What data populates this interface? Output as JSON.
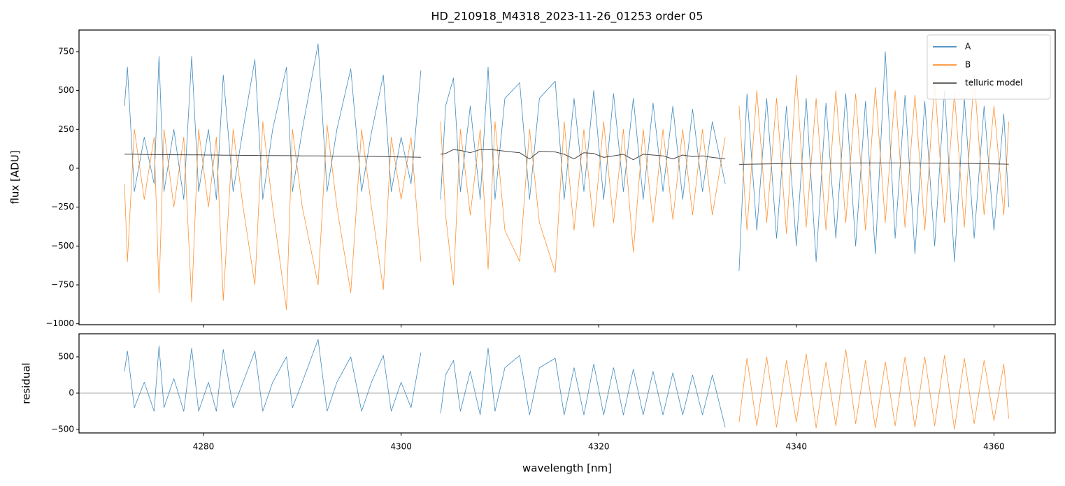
{
  "chart_data": [
    {
      "type": "line",
      "title": "HD_210918_M4318_2023-11-26_01253  order 05",
      "y_label": "flux [ADU]",
      "x": [
        4272,
        4272.3,
        4273,
        4274,
        4275,
        4275.5,
        4276,
        4277,
        4278,
        4278.8,
        4279.5,
        4280.5,
        4281.3,
        4282,
        4283,
        4284,
        4285.2,
        4286,
        4287,
        4288.4,
        4289,
        4290,
        4291.6,
        4292.5,
        4293.5,
        4294.9,
        4296,
        4297,
        4298.2,
        4299,
        4300,
        4301,
        4302,
        null,
        4304,
        4304.5,
        4305.3,
        4306,
        4307,
        4308,
        4308.8,
        4309.5,
        4310.5,
        4312,
        4313,
        4314,
        4315.6,
        4316.5,
        4317.5,
        4318.5,
        4319.5,
        4320.5,
        4321.5,
        4322.5,
        4323.5,
        4324.5,
        4325.5,
        4326.5,
        4327.5,
        4328.5,
        4329.5,
        4330.5,
        4331.5,
        4332.8,
        null,
        4334.2,
        4335,
        4336,
        4337,
        4338,
        4339,
        4340,
        4341,
        4342,
        4343,
        4344,
        4345,
        4346,
        4347,
        4348,
        4349,
        4350,
        4351,
        4352,
        4353,
        4354,
        4355,
        4356,
        4357,
        4358,
        4359,
        4360,
        4361,
        4361.5
      ],
      "series": [
        {
          "name": "A",
          "color": "#1f77b4",
          "values": [
            400,
            650,
            -150,
            200,
            -100,
            720,
            -150,
            250,
            -200,
            720,
            -150,
            250,
            -200,
            600,
            -150,
            250,
            700,
            -200,
            250,
            650,
            -150,
            250,
            800,
            -150,
            250,
            640,
            -150,
            230,
            600,
            -150,
            200,
            -100,
            630,
            null,
            -200,
            400,
            580,
            -150,
            400,
            -200,
            650,
            -200,
            450,
            550,
            -200,
            450,
            560,
            -200,
            450,
            -150,
            500,
            -200,
            480,
            -150,
            450,
            -200,
            420,
            -150,
            400,
            -200,
            380,
            -150,
            300,
            -100,
            null,
            -660,
            480,
            -400,
            450,
            -450,
            400,
            -500,
            450,
            -600,
            420,
            -450,
            480,
            -500,
            430,
            -550,
            750,
            -450,
            470,
            -550,
            430,
            -500,
            500,
            -600,
            450,
            -450,
            400,
            -400,
            350,
            -250
          ]
        },
        {
          "name": "B",
          "color": "#ff7f0e",
          "values": [
            -100,
            -600,
            250,
            -200,
            200,
            -800,
            250,
            -250,
            200,
            -860,
            250,
            -250,
            200,
            -850,
            250,
            -250,
            -750,
            300,
            -250,
            -910,
            250,
            -250,
            -750,
            280,
            -250,
            -800,
            250,
            -250,
            -780,
            200,
            -200,
            200,
            -600,
            null,
            300,
            -300,
            -750,
            250,
            -300,
            250,
            -650,
            300,
            -400,
            -600,
            250,
            -350,
            -670,
            300,
            -400,
            250,
            -380,
            300,
            -350,
            250,
            -540,
            250,
            -350,
            250,
            -330,
            250,
            -300,
            250,
            -300,
            200,
            null,
            400,
            -400,
            500,
            -350,
            450,
            -420,
            600,
            -380,
            450,
            -400,
            500,
            -350,
            480,
            -400,
            520,
            -350,
            500,
            -380,
            470,
            -400,
            560,
            -350,
            480,
            -380,
            600,
            -300,
            400,
            -300,
            300
          ]
        },
        {
          "name": "telluric model",
          "color": "#333333",
          "values": [
            90,
            90,
            90,
            89,
            89,
            88,
            88,
            87,
            87,
            86,
            86,
            85,
            85,
            84,
            84,
            83,
            83,
            82,
            82,
            81,
            81,
            80,
            80,
            79,
            78,
            78,
            77,
            76,
            75,
            74,
            73,
            72,
            71,
            null,
            90,
            95,
            120,
            115,
            100,
            120,
            120,
            118,
            110,
            100,
            60,
            110,
            105,
            90,
            60,
            100,
            95,
            70,
            80,
            90,
            55,
            90,
            85,
            80,
            60,
            85,
            75,
            80,
            70,
            60,
            null,
            25,
            26,
            27,
            28,
            29,
            30,
            31,
            31,
            32,
            32,
            33,
            33,
            34,
            34,
            34,
            34,
            34,
            34,
            34,
            33,
            33,
            32,
            32,
            31,
            30,
            29,
            28,
            27,
            26
          ]
        }
      ],
      "xlim": [
        4267.4,
        4366.2
      ],
      "xticks": [
        4280,
        4300,
        4320,
        4340,
        4360
      ],
      "ylim": [
        -1006,
        889
      ],
      "yticks": [
        {
          "value": -1000,
          "label": "−1000"
        },
        {
          "value": -750,
          "label": "−750"
        },
        {
          "value": -500,
          "label": "−500"
        },
        {
          "value": -250,
          "label": "−250"
        },
        0,
        250,
        500,
        750
      ],
      "legend": "upper right"
    },
    {
      "type": "line",
      "x_label": "wavelength [nm]",
      "y_label": "residual",
      "x": [
        4272,
        4272.3,
        4273,
        4274,
        4275,
        4275.5,
        4276,
        4277,
        4278,
        4278.8,
        4279.5,
        4280.5,
        4281.3,
        4282,
        4283,
        4284,
        4285.2,
        4286,
        4287,
        4288.4,
        4289,
        4290,
        4291.6,
        4292.5,
        4293.5,
        4294.9,
        4296,
        4297,
        4298.2,
        4299,
        4300,
        4301,
        4302,
        null,
        4304,
        4304.5,
        4305.3,
        4306,
        4307,
        4308,
        4308.8,
        4309.5,
        4310.5,
        4312,
        4313,
        4314,
        4315.6,
        4316.5,
        4317.5,
        4318.5,
        4319.5,
        4320.5,
        4321.5,
        4322.5,
        4323.5,
        4324.5,
        4325.5,
        4326.5,
        4327.5,
        4328.5,
        4329.5,
        4330.5,
        4331.5,
        4332.8,
        null,
        4334.2,
        4335,
        4336,
        4337,
        4338,
        4339,
        4340,
        4341,
        4342,
        4343,
        4344,
        4345,
        4346,
        4347,
        4348,
        4349,
        4350,
        4351,
        4352,
        4353,
        4354,
        4355,
        4356,
        4357,
        4358,
        4359,
        4360,
        4361,
        4361.5
      ],
      "series": [
        {
          "color": "#1f77b4",
          "values": [
            300,
            580,
            -200,
            150,
            -250,
            650,
            -200,
            200,
            -250,
            620,
            -250,
            150,
            -250,
            600,
            -200,
            150,
            580,
            -250,
            150,
            500,
            -200,
            150,
            740,
            -250,
            150,
            500,
            -250,
            150,
            520,
            -250,
            150,
            -200,
            560,
            null,
            -280,
            250,
            450,
            -250,
            300,
            -300,
            620,
            -250,
            350,
            520,
            -300,
            350,
            480,
            -300,
            350,
            -300,
            400,
            -300,
            350,
            -300,
            330,
            -300,
            300,
            -300,
            280,
            -300,
            250,
            -300,
            250,
            -470,
            null,
            null,
            null,
            null,
            null,
            null,
            null,
            null,
            null,
            null,
            null,
            null,
            null,
            null,
            null,
            null,
            null,
            null,
            null,
            null,
            null,
            null,
            null,
            null,
            null,
            null,
            null,
            null,
            null,
            null
          ]
        },
        {
          "color": "#ff7f0e",
          "values": [
            null,
            null,
            null,
            null,
            null,
            null,
            null,
            null,
            null,
            null,
            null,
            null,
            null,
            null,
            null,
            null,
            null,
            null,
            null,
            null,
            null,
            null,
            null,
            null,
            null,
            null,
            null,
            null,
            null,
            null,
            null,
            null,
            null,
            null,
            null,
            null,
            null,
            null,
            null,
            null,
            null,
            null,
            null,
            null,
            null,
            null,
            null,
            null,
            null,
            null,
            null,
            null,
            null,
            null,
            null,
            null,
            null,
            null,
            null,
            null,
            null,
            null,
            null,
            null,
            null,
            -400,
            480,
            -450,
            500,
            -470,
            450,
            -400,
            540,
            -480,
            430,
            -450,
            600,
            -420,
            450,
            -480,
            430,
            -450,
            500,
            -470,
            500,
            -450,
            520,
            -500,
            480,
            -420,
            450,
            -380,
            400,
            -350
          ]
        }
      ],
      "axhline": 0,
      "xlim": [
        4267.4,
        4366.2
      ],
      "xticks": [
        4280,
        4300,
        4320,
        4340,
        4360
      ],
      "ylim": [
        -548,
        817
      ],
      "yticks": [
        {
          "value": -500,
          "label": "−500"
        },
        0,
        500
      ]
    }
  ]
}
